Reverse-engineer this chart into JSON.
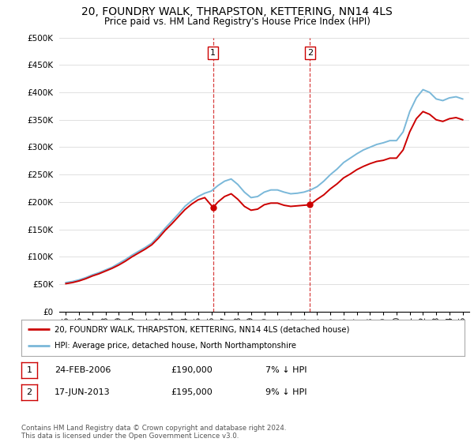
{
  "title": "20, FOUNDRY WALK, THRAPSTON, KETTERING, NN14 4LS",
  "subtitle": "Price paid vs. HM Land Registry's House Price Index (HPI)",
  "ylabel_ticks": [
    "£0",
    "£50K",
    "£100K",
    "£150K",
    "£200K",
    "£250K",
    "£300K",
    "£350K",
    "£400K",
    "£450K",
    "£500K"
  ],
  "ytick_values": [
    0,
    50000,
    100000,
    150000,
    200000,
    250000,
    300000,
    350000,
    400000,
    450000,
    500000
  ],
  "ylim": [
    0,
    500000
  ],
  "xlim_start": 1994.5,
  "xlim_end": 2025.5,
  "hpi_color": "#7ab8d9",
  "price_color": "#cc0000",
  "vline_color": "#cc0000",
  "transaction1_date": 2006.13,
  "transaction1_price": 190000,
  "transaction1_label": "1",
  "transaction2_date": 2013.46,
  "transaction2_price": 195000,
  "transaction2_label": "2",
  "legend_line1": "20, FOUNDRY WALK, THRAPSTON, KETTERING, NN14 4LS (detached house)",
  "legend_line2": "HPI: Average price, detached house, North Northamptonshire",
  "table_row1": [
    "1",
    "24-FEB-2006",
    "£190,000",
    "7% ↓ HPI"
  ],
  "table_row2": [
    "2",
    "17-JUN-2013",
    "£195,000",
    "9% ↓ HPI"
  ],
  "footer": "Contains HM Land Registry data © Crown copyright and database right 2024.\nThis data is licensed under the Open Government Licence v3.0.",
  "background_color": "#ffffff",
  "grid_color": "#e0e0e0",
  "title_fontsize": 10,
  "subtitle_fontsize": 8.5
}
